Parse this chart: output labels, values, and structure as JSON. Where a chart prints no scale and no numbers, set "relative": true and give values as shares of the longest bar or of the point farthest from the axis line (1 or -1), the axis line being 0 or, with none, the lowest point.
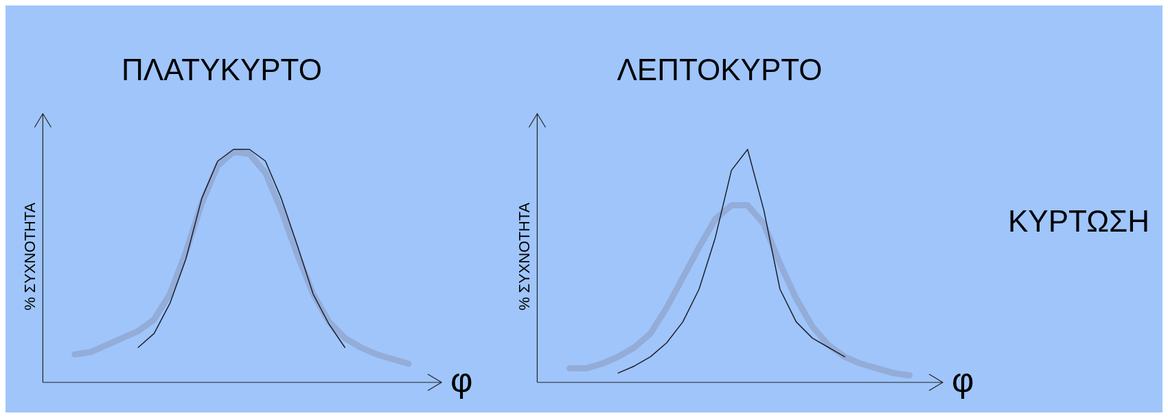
{
  "chart_data": [
    {
      "type": "line",
      "title": "ΠΛΑΤΥΚΥΡΤΟ",
      "xlabel": "φ",
      "ylabel": "% ΣΥΧΝΟΤΗΤΑ",
      "relative": true,
      "grid": false,
      "legend": false,
      "marker": "none",
      "line_style": "solid",
      "categories": [
        null,
        null,
        null,
        null,
        null,
        null,
        null,
        null,
        null,
        null,
        null,
        null,
        null,
        null,
        null,
        null,
        null,
        null,
        null,
        null,
        null,
        null,
        null,
        null,
        null
      ],
      "series": [
        {
          "color": "#93acd8",
          "values": [
            null,
            null,
            0.12,
            0.13,
            0.16,
            0.19,
            0.22,
            0.27,
            0.38,
            0.56,
            0.77,
            0.93,
            0.99,
            0.98,
            0.9,
            0.74,
            0.55,
            0.38,
            0.26,
            0.19,
            0.15,
            0.12,
            0.1,
            0.08,
            null
          ]
        },
        {
          "color": "#1e1e2a",
          "values": [
            null,
            null,
            null,
            null,
            null,
            null,
            0.15,
            0.21,
            0.34,
            0.53,
            0.79,
            0.95,
            1,
            1,
            0.95,
            0.79,
            0.59,
            0.38,
            0.25,
            0.15,
            null,
            null,
            null,
            null,
            null
          ]
        }
      ]
    },
    {
      "type": "line",
      "title": "ΛΕΠΤΟΚΥΡΤΟ",
      "xlabel": "φ",
      "ylabel": "% ΣΥΧΝΟΤΗΤΑ",
      "relative": true,
      "grid": false,
      "legend": false,
      "marker": "none",
      "line_style": "solid",
      "categories": [
        null,
        null,
        null,
        null,
        null,
        null,
        null,
        null,
        null,
        null,
        null,
        null,
        null,
        null,
        null,
        null,
        null,
        null,
        null,
        null,
        null,
        null,
        null,
        null,
        null
      ],
      "series": [
        {
          "color": "#93acd8",
          "values": [
            null,
            null,
            0.06,
            0.06,
            0.08,
            0.11,
            0.15,
            0.21,
            0.32,
            0.45,
            0.58,
            0.7,
            0.76,
            0.76,
            0.68,
            0.51,
            0.36,
            0.24,
            0.16,
            0.11,
            0.08,
            0.06,
            0.04,
            0.03,
            null
          ]
        },
        {
          "color": "#1e1e2a",
          "values": [
            null,
            null,
            null,
            null,
            null,
            0.04,
            0.07,
            0.11,
            0.17,
            0.26,
            0.4,
            0.62,
            0.91,
            1,
            0.74,
            0.4,
            0.26,
            0.19,
            0.15,
            0.11,
            null,
            null,
            null,
            null,
            null
          ]
        }
      ]
    },
    {
      "type": "other",
      "title": "ΚΥΡΤΩΣΗ"
    }
  ]
}
